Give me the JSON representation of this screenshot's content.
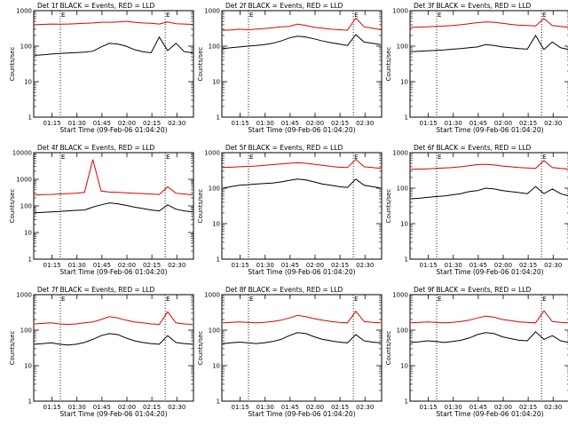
{
  "chart_data": [
    {
      "type": "line",
      "title": "Det 1f BLACK = Events, RED = LLD",
      "xlabel": "Start Time (09-Feb-06 01:04:20)",
      "ylabel": "Counts/sec",
      "yscale": "log",
      "ylim": [
        1,
        1000
      ],
      "x_ticks": [
        "01:15",
        "01:30",
        "01:45",
        "02:00",
        "02:15",
        "02:30"
      ],
      "y_ticks": [
        "1",
        "10",
        "100",
        "1000"
      ],
      "markers": [
        {
          "time": "01:20",
          "label": "E"
        },
        {
          "time": "02:23",
          "label": "E"
        }
      ],
      "series": [
        {
          "color": "#e00000",
          "values": [
            400,
            410,
            420,
            415,
            420,
            430,
            440,
            450,
            470,
            470,
            480,
            500,
            470,
            450,
            440,
            420,
            480,
            430,
            420,
            410
          ]
        },
        {
          "color": "#000000",
          "values": [
            55,
            57,
            60,
            62,
            64,
            66,
            68,
            72,
            95,
            120,
            115,
            100,
            80,
            70,
            65,
            180,
            75,
            120,
            70,
            65
          ]
        }
      ]
    },
    {
      "type": "line",
      "title": "Det 2f BLACK = Events, RED = LLD",
      "xlabel": "Start Time (09-Feb-06 01:04:20)",
      "ylabel": "Counts/sec",
      "yscale": "log",
      "ylim": [
        1,
        1000
      ],
      "x_ticks": [
        "01:15",
        "01:30",
        "01:45",
        "02:00",
        "02:15",
        "02:30"
      ],
      "y_ticks": [
        "1",
        "10",
        "100",
        "1000"
      ],
      "markers": [
        {
          "time": "01:20",
          "label": "E"
        },
        {
          "time": "02:23",
          "label": "E"
        }
      ],
      "series": [
        {
          "color": "#e00000",
          "values": [
            280,
            285,
            300,
            290,
            300,
            310,
            330,
            350,
            360,
            420,
            380,
            340,
            320,
            300,
            290,
            280,
            620,
            350,
            320,
            290
          ]
        },
        {
          "color": "#000000",
          "values": [
            85,
            90,
            95,
            100,
            105,
            110,
            120,
            140,
            170,
            190,
            180,
            160,
            140,
            125,
            115,
            105,
            210,
            130,
            120,
            110
          ]
        }
      ]
    },
    {
      "type": "line",
      "title": "Det 3f BLACK = Events, RED = LLD",
      "xlabel": "Start Time (09-Feb-06 01:04:20)",
      "ylabel": "Counts/sec",
      "yscale": "log",
      "ylim": [
        1,
        1000
      ],
      "x_ticks": [
        "01:15",
        "01:30",
        "01:45",
        "02:00",
        "02:15",
        "02:30"
      ],
      "y_ticks": [
        "1",
        "10",
        "100",
        "1000"
      ],
      "markers": [
        {
          "time": "01:20",
          "label": "E"
        },
        {
          "time": "02:23",
          "label": "E"
        }
      ],
      "series": [
        {
          "color": "#e00000",
          "values": [
            340,
            345,
            350,
            360,
            370,
            380,
            400,
            430,
            460,
            480,
            470,
            440,
            410,
            390,
            380,
            370,
            600,
            380,
            360,
            340
          ]
        },
        {
          "color": "#000000",
          "values": [
            70,
            72,
            74,
            76,
            78,
            82,
            85,
            90,
            95,
            110,
            105,
            95,
            90,
            85,
            82,
            200,
            80,
            130,
            90,
            80
          ]
        }
      ]
    },
    {
      "type": "line",
      "title": "Det 4f BLACK = Events, RED = LLD",
      "xlabel": "Start Time (09-Feb-06 01:04:20)",
      "ylabel": "Counts/sec",
      "yscale": "log",
      "ylim": [
        1,
        10000
      ],
      "x_ticks": [
        "01:15",
        "01:30",
        "01:45",
        "02:00",
        "02:15",
        "02:30"
      ],
      "y_ticks": [
        "1",
        "10",
        "100",
        "1000",
        "10000"
      ],
      "markers": [
        {
          "time": "01:20",
          "label": "E"
        },
        {
          "time": "02:23",
          "label": "E"
        }
      ],
      "series": [
        {
          "color": "#e00000",
          "values": [
            260,
            265,
            270,
            280,
            290,
            300,
            320,
            5500,
            360,
            330,
            320,
            310,
            300,
            290,
            280,
            270,
            520,
            300,
            280,
            260
          ]
        },
        {
          "color": "#000000",
          "values": [
            55,
            57,
            60,
            62,
            65,
            68,
            70,
            90,
            110,
            130,
            120,
            105,
            90,
            80,
            70,
            65,
            110,
            75,
            65,
            60
          ]
        }
      ]
    },
    {
      "type": "line",
      "title": "Det 5f BLACK = Events, RED = LLD",
      "xlabel": "Start Time (09-Feb-06 01:04:20)",
      "ylabel": "Counts/sec",
      "yscale": "log",
      "ylim": [
        1,
        1000
      ],
      "x_ticks": [
        "01:15",
        "01:30",
        "01:45",
        "02:00",
        "02:15",
        "02:30"
      ],
      "y_ticks": [
        "1",
        "10",
        "100",
        "1000"
      ],
      "markers": [
        {
          "time": "01:20",
          "label": "E"
        },
        {
          "time": "02:23",
          "label": "E"
        }
      ],
      "series": [
        {
          "color": "#e00000",
          "values": [
            380,
            390,
            400,
            410,
            420,
            440,
            460,
            480,
            500,
            520,
            500,
            470,
            440,
            410,
            390,
            380,
            650,
            400,
            380,
            360
          ]
        },
        {
          "color": "#000000",
          "values": [
            100,
            110,
            120,
            125,
            130,
            135,
            140,
            150,
            165,
            180,
            170,
            150,
            130,
            120,
            110,
            105,
            180,
            120,
            110,
            100
          ]
        }
      ]
    },
    {
      "type": "line",
      "title": "Det 6f BLACK = Events, RED = LLD",
      "xlabel": "Start Time (09-Feb-06 01:04:20)",
      "ylabel": "Counts/sec",
      "yscale": "log",
      "ylim": [
        1,
        1000
      ],
      "x_ticks": [
        "01:15",
        "01:30",
        "01:45",
        "02:00",
        "02:15",
        "02:30"
      ],
      "y_ticks": [
        "1",
        "10",
        "100",
        "1000"
      ],
      "markers": [
        {
          "time": "01:20",
          "label": "E"
        },
        {
          "time": "02:23",
          "label": "E"
        }
      ],
      "series": [
        {
          "color": "#e00000",
          "values": [
            340,
            345,
            350,
            360,
            370,
            380,
            400,
            430,
            460,
            470,
            450,
            420,
            400,
            380,
            370,
            360,
            600,
            380,
            360,
            340
          ]
        },
        {
          "color": "#000000",
          "values": [
            50,
            52,
            55,
            58,
            60,
            65,
            70,
            80,
            85,
            100,
            95,
            85,
            80,
            75,
            70,
            110,
            70,
            95,
            70,
            60
          ]
        }
      ]
    },
    {
      "type": "line",
      "title": "Det 7f BLACK = Events, RED = LLD",
      "xlabel": "Start Time (09-Feb-06 01:04:20)",
      "ylabel": "Counts/sec",
      "yscale": "log",
      "ylim": [
        1,
        1000
      ],
      "x_ticks": [
        "01:15",
        "01:30",
        "01:45",
        "02:00",
        "02:15",
        "02:30"
      ],
      "y_ticks": [
        "1",
        "10",
        "100",
        "1000"
      ],
      "markers": [
        {
          "time": "01:20",
          "label": "E"
        },
        {
          "time": "02:23",
          "label": "E"
        }
      ],
      "series": [
        {
          "color": "#e00000",
          "values": [
            150,
            155,
            160,
            150,
            145,
            150,
            160,
            170,
            200,
            240,
            220,
            190,
            170,
            160,
            150,
            145,
            330,
            160,
            150,
            145
          ]
        },
        {
          "color": "#000000",
          "values": [
            40,
            42,
            44,
            40,
            38,
            40,
            45,
            55,
            70,
            80,
            75,
            60,
            50,
            45,
            42,
            40,
            70,
            45,
            42,
            40
          ]
        }
      ]
    },
    {
      "type": "line",
      "title": "Det 8f BLACK = Events, RED = LLD",
      "xlabel": "Start Time (09-Feb-06 01:04:20)",
      "ylabel": "Counts/sec",
      "yscale": "log",
      "ylim": [
        1,
        1000
      ],
      "x_ticks": [
        "01:15",
        "01:30",
        "01:45",
        "02:00",
        "02:15",
        "02:30"
      ],
      "y_ticks": [
        "1",
        "10",
        "100",
        "1000"
      ],
      "markers": [
        {
          "time": "01:20",
          "label": "E"
        },
        {
          "time": "02:23",
          "label": "E"
        }
      ],
      "series": [
        {
          "color": "#e00000",
          "values": [
            160,
            165,
            170,
            165,
            160,
            165,
            175,
            190,
            220,
            260,
            240,
            210,
            190,
            175,
            165,
            160,
            340,
            175,
            165,
            160
          ]
        },
        {
          "color": "#000000",
          "values": [
            42,
            44,
            46,
            44,
            42,
            44,
            48,
            55,
            70,
            85,
            80,
            65,
            55,
            50,
            46,
            44,
            75,
            50,
            46,
            44
          ]
        }
      ]
    },
    {
      "type": "line",
      "title": "Det 9f BLACK = Events, RED = LLD",
      "xlabel": "Start Time (09-Feb-06 01:04:20)",
      "ylabel": "Counts/sec",
      "yscale": "log",
      "ylim": [
        1,
        1000
      ],
      "x_ticks": [
        "01:15",
        "01:30",
        "01:45",
        "02:00",
        "02:15",
        "02:30"
      ],
      "y_ticks": [
        "1",
        "10",
        "100",
        "1000"
      ],
      "markers": [
        {
          "time": "01:20",
          "label": "E"
        },
        {
          "time": "02:23",
          "label": "E"
        }
      ],
      "series": [
        {
          "color": "#e00000",
          "values": [
            160,
            165,
            170,
            165,
            160,
            165,
            175,
            190,
            220,
            250,
            230,
            200,
            185,
            170,
            165,
            160,
            350,
            175,
            165,
            160
          ]
        },
        {
          "color": "#000000",
          "values": [
            45,
            47,
            50,
            48,
            45,
            48,
            52,
            60,
            75,
            85,
            80,
            65,
            58,
            52,
            50,
            90,
            55,
            70,
            50,
            45
          ]
        }
      ]
    }
  ]
}
